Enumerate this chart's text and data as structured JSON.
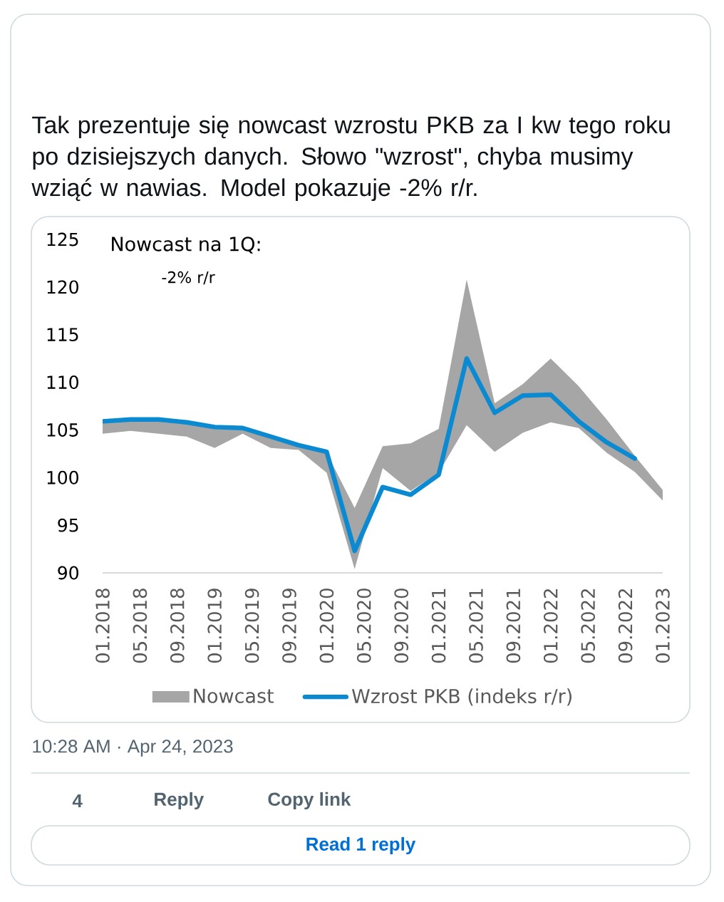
{
  "chart_data": {
    "type": "line",
    "title": "Tak prezentuje się nowcast wzrostu PKB za I kw tego roku po dzisiejszych danych. Słowo \"wzrost\", chyba musimy wziąć w nawias. Model pokazuje -2% r/r.",
    "annotations": [
      "Nowcast na 1Q:",
      "-2% r/r",
      "10:28 AM · Apr 24, 2023",
      "4",
      "Reply",
      "Copy link",
      "Read 1 reply"
    ],
    "xlim": [
      "2018-01",
      "2023-01"
    ],
    "xticks": [
      {
        "value": "2018-01",
        "label": "01.2018"
      },
      {
        "value": "2018-05",
        "label": "05.2018"
      },
      {
        "value": "2018-09",
        "label": "09.2018"
      },
      {
        "value": "2019-01",
        "label": "01.2019"
      },
      {
        "value": "2019-05",
        "label": "05.2019"
      },
      {
        "value": "2019-09",
        "label": "09.2019"
      },
      {
        "value": "2020-01",
        "label": "01.2020"
      },
      {
        "value": "2020-05",
        "label": "05.2020"
      },
      {
        "value": "2020-09",
        "label": "09.2020"
      },
      {
        "value": "2021-01",
        "label": "01.2021"
      },
      {
        "value": "2021-05",
        "label": "05.2021"
      },
      {
        "value": "2021-09",
        "label": "09.2021"
      },
      {
        "value": "2022-01",
        "label": "01.2022"
      },
      {
        "value": "2022-05",
        "label": "05.2022"
      },
      {
        "value": "2022-09",
        "label": "09.2022"
      },
      {
        "value": "2023-01",
        "label": "01.2023"
      }
    ],
    "ylim": [
      90,
      125
    ],
    "yticks": [
      90,
      95,
      100,
      105,
      110,
      115,
      120,
      125
    ],
    "legend": "bottom",
    "series": [
      {
        "name": "Nowcast",
        "type": "area",
        "color": "#a6a6a6",
        "x": [
          "2018-01",
          "2018-04",
          "2018-07",
          "2018-10",
          "2019-01",
          "2019-04",
          "2019-07",
          "2019-10",
          "2020-01",
          "2020-04",
          "2020-07",
          "2020-10",
          "2021-01",
          "2021-04",
          "2021-07",
          "2021-10",
          "2022-01",
          "2022-04",
          "2022-07",
          "2022-10",
          "2023-01"
        ],
        "values": [
          null,
          null,
          null,
          null,
          null,
          null,
          null,
          null,
          null,
          null,
          null,
          null,
          null,
          null,
          null,
          null,
          null,
          null,
          null,
          null,
          null
        ],
        "lower": [
          104.6,
          104.9,
          104.6,
          104.3,
          103.1,
          104.6,
          103.1,
          102.9,
          100.5,
          90.4,
          101.0,
          98.6,
          100.5,
          105.5,
          102.7,
          104.7,
          105.8,
          105.2,
          102.6,
          100.6,
          97.6
        ],
        "upper": [
          105.9,
          106.0,
          106.0,
          105.7,
          105.3,
          105.1,
          104.3,
          103.4,
          102.6,
          96.8,
          103.3,
          103.6,
          105.1,
          120.8,
          107.8,
          109.8,
          112.5,
          109.6,
          106.1,
          102.3,
          98.7
        ]
      },
      {
        "name": "Wzrost PKB (indeks r/r)",
        "color": "#0b8ad2",
        "x": [
          "2018-01",
          "2018-04",
          "2018-07",
          "2018-10",
          "2019-01",
          "2019-04",
          "2019-07",
          "2019-10",
          "2020-01",
          "2020-04",
          "2020-07",
          "2020-10",
          "2021-01",
          "2021-04",
          "2021-07",
          "2021-10",
          "2022-01",
          "2022-04",
          "2022-07",
          "2022-10"
        ],
        "values": [
          105.9,
          106.1,
          106.1,
          105.8,
          105.3,
          105.2,
          104.3,
          103.4,
          102.7,
          92.3,
          99.0,
          98.2,
          100.3,
          112.5,
          106.8,
          108.6,
          108.7,
          105.9,
          103.7,
          102.0
        ]
      }
    ]
  }
}
